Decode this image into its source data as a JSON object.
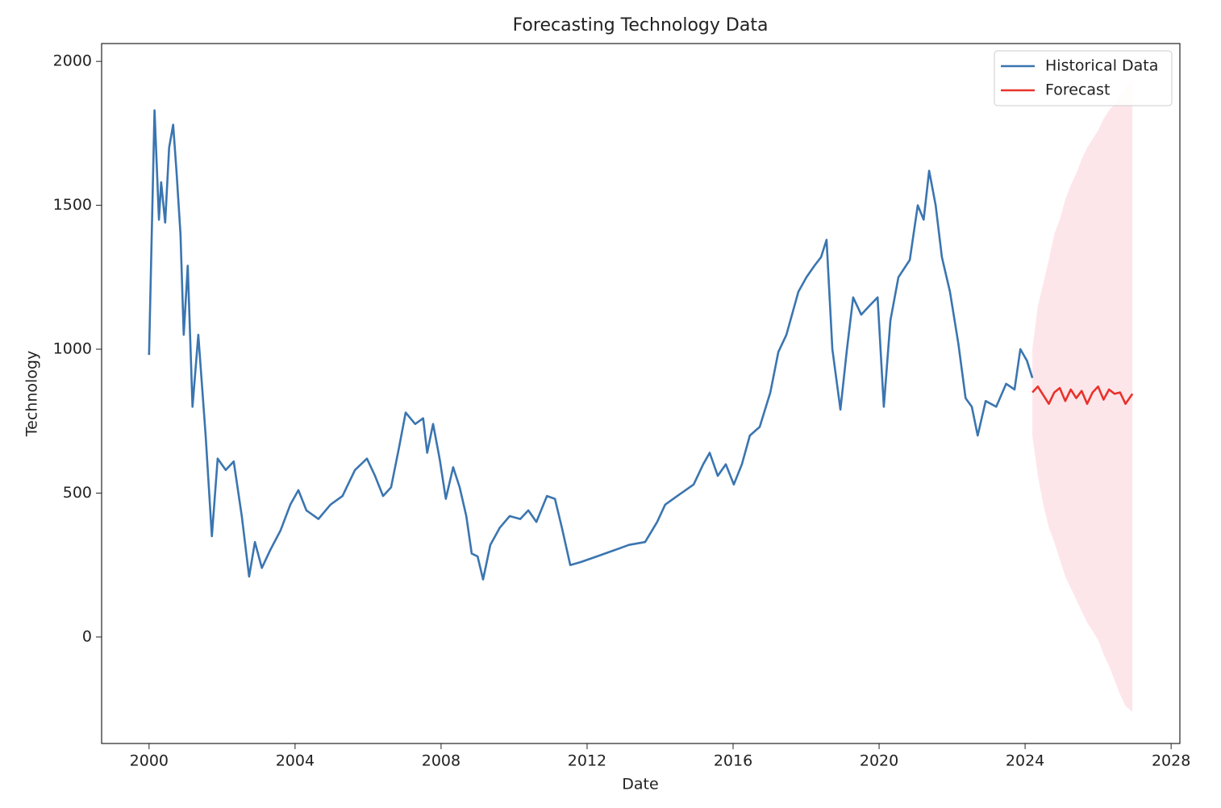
{
  "chart_data": {
    "type": "line",
    "title": "Forecasting Technology Data",
    "x_label": "Date",
    "y_label": "Technology",
    "xlim": [
      1998.7,
      2028.24
    ],
    "ylim": [
      -370,
      2062
    ],
    "xticks": [
      2000,
      2004,
      2008,
      2012,
      2016,
      2020,
      2024,
      2028
    ],
    "yticks": [
      0,
      500,
      1000,
      1500,
      2000
    ],
    "grid": false,
    "legend": "upper right",
    "series": [
      {
        "name": "Historical Data",
        "color": "#3a75b0",
        "x": [
          2000.0,
          2000.15,
          2000.27,
          2000.33,
          2000.44,
          2000.55,
          2000.66,
          2000.75,
          2000.86,
          2000.95,
          2001.06,
          2001.19,
          2001.35,
          2001.55,
          2001.72,
          2001.88,
          2002.1,
          2002.32,
          2002.54,
          2002.74,
          2002.9,
          2003.09,
          2003.31,
          2003.6,
          2003.87,
          2004.09,
          2004.31,
          2004.64,
          2004.97,
          2005.3,
          2005.64,
          2005.97,
          2006.19,
          2006.41,
          2006.63,
          2006.85,
          2007.03,
          2007.29,
          2007.51,
          2007.62,
          2007.78,
          2007.96,
          2008.13,
          2008.33,
          2008.51,
          2008.69,
          2008.84,
          2009.0,
          2009.15,
          2009.35,
          2009.61,
          2009.88,
          2010.17,
          2010.39,
          2010.61,
          2010.9,
          2011.12,
          2011.31,
          2011.54,
          2011.82,
          2012.27,
          2012.71,
          2013.15,
          2013.59,
          2013.92,
          2014.14,
          2014.47,
          2014.92,
          2015.18,
          2015.36,
          2015.58,
          2015.8,
          2016.02,
          2016.24,
          2016.46,
          2016.73,
          2017.02,
          2017.24,
          2017.46,
          2017.79,
          2018.01,
          2018.23,
          2018.41,
          2018.56,
          2018.72,
          2018.94,
          2019.12,
          2019.29,
          2019.51,
          2019.73,
          2019.96,
          2020.13,
          2020.31,
          2020.53,
          2020.84,
          2021.06,
          2021.22,
          2021.37,
          2021.55,
          2021.72,
          2021.94,
          2022.17,
          2022.37,
          2022.54,
          2022.7,
          2022.92,
          2023.21,
          2023.48,
          2023.71,
          2023.87,
          2024.05,
          2024.2
        ],
        "values": [
          980,
          1830,
          1450,
          1580,
          1440,
          1700,
          1780,
          1620,
          1400,
          1050,
          1290,
          800,
          1050,
          700,
          350,
          620,
          580,
          610,
          420,
          210,
          330,
          240,
          300,
          370,
          460,
          510,
          440,
          410,
          460,
          490,
          580,
          620,
          560,
          490,
          520,
          660,
          780,
          740,
          760,
          640,
          740,
          620,
          480,
          590,
          520,
          420,
          290,
          280,
          200,
          320,
          380,
          420,
          410,
          440,
          400,
          490,
          480,
          380,
          250,
          260,
          280,
          300,
          320,
          330,
          400,
          460,
          490,
          530,
          600,
          640,
          560,
          600,
          530,
          600,
          700,
          730,
          850,
          990,
          1050,
          1200,
          1250,
          1290,
          1320,
          1380,
          1000,
          790,
          1000,
          1180,
          1120,
          1150,
          1180,
          800,
          1100,
          1250,
          1310,
          1500,
          1450,
          1620,
          1500,
          1320,
          1200,
          1020,
          830,
          800,
          700,
          820,
          800,
          880,
          860,
          1000,
          960,
          900
        ]
      },
      {
        "name": "Forecast",
        "color": "#e8322a",
        "band_color": "#fde6ea",
        "x": [
          2024.2,
          2024.35,
          2024.5,
          2024.65,
          2024.8,
          2024.95,
          2025.1,
          2025.25,
          2025.4,
          2025.55,
          2025.7,
          2025.85,
          2026.0,
          2026.15,
          2026.3,
          2026.45,
          2026.6,
          2026.75,
          2026.94
        ],
        "values": [
          850,
          870,
          840,
          810,
          850,
          865,
          820,
          860,
          830,
          855,
          810,
          850,
          870,
          825,
          860,
          845,
          850,
          810,
          845
        ],
        "lower": [
          700,
          560,
          460,
          380,
          330,
          270,
          210,
          170,
          130,
          90,
          50,
          20,
          -10,
          -60,
          -100,
          -150,
          -200,
          -240,
          -260
        ],
        "upper": [
          1000,
          1150,
          1230,
          1310,
          1400,
          1450,
          1520,
          1570,
          1610,
          1660,
          1700,
          1730,
          1760,
          1800,
          1830,
          1850,
          1880,
          1910,
          1940
        ]
      }
    ]
  }
}
